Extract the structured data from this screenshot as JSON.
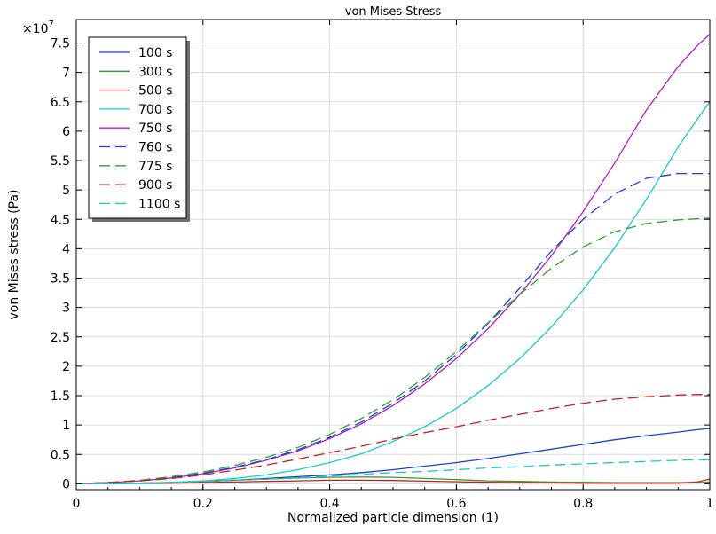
{
  "chart_data": {
    "type": "line",
    "title": "von Mises Stress",
    "xlabel": "Normalized particle dimension (1)",
    "ylabel": "von Mises stress (Pa)",
    "y_multiplier": "×10",
    "y_exponent": "7",
    "xlim": [
      0,
      1
    ],
    "ylim": [
      -0.1,
      7.9
    ],
    "x_ticks": [
      0,
      0.2,
      0.4,
      0.6,
      0.8,
      1
    ],
    "x_tick_labels": [
      "0",
      "0.2",
      "0.4",
      "0.6",
      "0.8",
      "1"
    ],
    "y_ticks": [
      0,
      0.5,
      1,
      1.5,
      2,
      2.5,
      3,
      3.5,
      4,
      4.5,
      5,
      5.5,
      6,
      6.5,
      7,
      7.5
    ],
    "y_tick_labels": [
      "0",
      "0.5",
      "1",
      "1.5",
      "2",
      "2.5",
      "3",
      "3.5",
      "4",
      "4.5",
      "5",
      "5.5",
      "6",
      "6.5",
      "7",
      "7.5"
    ],
    "grid": true,
    "legend_position": "top-left",
    "x": [
      0,
      0.05,
      0.1,
      0.15,
      0.2,
      0.25,
      0.3,
      0.35,
      0.4,
      0.45,
      0.5,
      0.55,
      0.6,
      0.65,
      0.7,
      0.75,
      0.8,
      0.85,
      0.9,
      0.95,
      0.98,
      1
    ],
    "series": [
      {
        "name": "100 s",
        "color": "#1c3fd4",
        "dash": "solid",
        "values": [
          0,
          0.003,
          0.01,
          0.02,
          0.04,
          0.06,
          0.09,
          0.12,
          0.15,
          0.19,
          0.24,
          0.3,
          0.36,
          0.43,
          0.51,
          0.59,
          0.67,
          0.75,
          0.82,
          0.88,
          0.92,
          0.94
        ]
      },
      {
        "name": "300 s",
        "color": "#2ca02c",
        "dash": "solid",
        "values": [
          0,
          0.005,
          0.01,
          0.02,
          0.04,
          0.06,
          0.08,
          0.1,
          0.11,
          0.115,
          0.11,
          0.09,
          0.07,
          0.05,
          0.04,
          0.03,
          0.025,
          0.02,
          0.02,
          0.02,
          0.02,
          0.03
        ]
      },
      {
        "name": "500 s",
        "color": "#c81e1e",
        "dash": "solid",
        "values": [
          0,
          0.002,
          0.005,
          0.01,
          0.02,
          0.03,
          0.04,
          0.05,
          0.06,
          0.06,
          0.055,
          0.045,
          0.035,
          0.025,
          0.02,
          0.015,
          0.01,
          0.01,
          0.01,
          0.01,
          0.03,
          0.08
        ]
      },
      {
        "name": "700 s",
        "color": "#19c8c8",
        "dash": "solid",
        "values": [
          0,
          0.003,
          0.01,
          0.025,
          0.05,
          0.09,
          0.15,
          0.24,
          0.36,
          0.51,
          0.72,
          0.97,
          1.28,
          1.67,
          2.13,
          2.67,
          3.3,
          4.02,
          4.84,
          5.73,
          6.2,
          6.5
        ]
      },
      {
        "name": "750 s",
        "color": "#b21ec0",
        "dash": "solid",
        "values": [
          0,
          0.02,
          0.05,
          0.1,
          0.17,
          0.27,
          0.4,
          0.56,
          0.77,
          1.02,
          1.33,
          1.7,
          2.13,
          2.64,
          3.22,
          3.88,
          4.63,
          5.46,
          6.36,
          7.1,
          7.45,
          7.65
        ]
      },
      {
        "name": "760 s",
        "color": "#1c3fd4",
        "dash": "dashed",
        "values": [
          0,
          0.02,
          0.05,
          0.1,
          0.18,
          0.28,
          0.41,
          0.58,
          0.79,
          1.05,
          1.37,
          1.75,
          2.2,
          2.73,
          3.33,
          3.96,
          4.5,
          4.93,
          5.2,
          5.28,
          5.28,
          5.28
        ]
      },
      {
        "name": "775 s",
        "color": "#2ca02c",
        "dash": "dashed",
        "values": [
          0,
          0.02,
          0.06,
          0.12,
          0.2,
          0.31,
          0.45,
          0.62,
          0.84,
          1.11,
          1.43,
          1.81,
          2.25,
          2.74,
          3.22,
          3.67,
          4.03,
          4.29,
          4.43,
          4.49,
          4.51,
          4.52
        ]
      },
      {
        "name": "900 s",
        "color": "#c81e1e",
        "dash": "dashed",
        "values": [
          0,
          0.02,
          0.05,
          0.09,
          0.15,
          0.23,
          0.32,
          0.42,
          0.53,
          0.64,
          0.76,
          0.87,
          0.97,
          1.08,
          1.18,
          1.28,
          1.37,
          1.44,
          1.48,
          1.51,
          1.52,
          1.52
        ]
      },
      {
        "name": "1100 s",
        "color": "#19c8c8",
        "dash": "dashed",
        "values": [
          0,
          0.005,
          0.01,
          0.02,
          0.04,
          0.06,
          0.08,
          0.1,
          0.13,
          0.16,
          0.19,
          0.21,
          0.24,
          0.27,
          0.29,
          0.32,
          0.34,
          0.36,
          0.38,
          0.4,
          0.41,
          0.41
        ]
      }
    ]
  }
}
